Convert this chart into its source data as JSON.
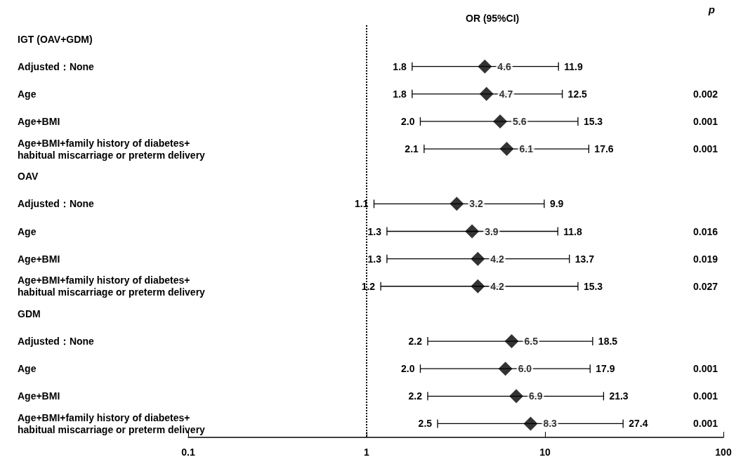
{
  "chart_data": {
    "type": "scatter",
    "orientation": "horizontal",
    "title": "OR (95%CI)",
    "y2label": "p",
    "categories": [
      "IGT (OAV+GDM)",
      "Adjusted：None",
      "Age",
      "Age+BMI",
      "Age+BMI+family history of diabetes+\nhabitual miscarriage or preterm delivery",
      "OAV",
      "Adjusted：None",
      "Age",
      "Age+BMI",
      "Age+BMI+family history of diabetes+\nhabitual miscarriage or preterm delivery",
      "GDM",
      "Adjusted：None",
      "Age",
      "Age+BMI",
      "Age+BMI+family history of diabetes+\nhabitual miscarriage or preterm delivery"
    ],
    "y2_categories": [
      null,
      null,
      "0.002",
      "0.001",
      "0.001",
      null,
      null,
      "0.016",
      "0.019",
      "0.027",
      null,
      null,
      "0.001",
      "0.001",
      "0.001"
    ],
    "values": [
      null,
      4.6,
      4.7,
      5.6,
      6.1,
      null,
      3.2,
      3.9,
      4.2,
      4.2,
      null,
      6.5,
      6.0,
      6.9,
      8.3
    ],
    "errors": [
      null,
      [
        1.8,
        11.9
      ],
      [
        1.8,
        12.5
      ],
      [
        2.0,
        15.3
      ],
      [
        2.1,
        17.6
      ],
      null,
      [
        1.1,
        9.9
      ],
      [
        1.3,
        11.8
      ],
      [
        1.3,
        13.7
      ],
      [
        1.2,
        15.3
      ],
      null,
      [
        2.2,
        18.5
      ],
      [
        2.0,
        17.9
      ],
      [
        2.2,
        21.3
      ],
      [
        2.5,
        27.4
      ]
    ],
    "value_labels": [
      null,
      "4.6",
      "4.7",
      "5.6",
      "6.1",
      null,
      "3.2",
      "3.9",
      "4.2",
      "4.2",
      null,
      "6.5",
      "6.0",
      "6.9",
      "8.3"
    ],
    "annotations": [
      "1.8",
      "11.9",
      "1.8",
      "12.5",
      "2.0",
      "15.3",
      "2.1",
      "17.6",
      "1.1",
      "9.9",
      "1.3",
      "11.8",
      "1.3",
      "13.7",
      "1.2",
      "15.3",
      "2.2",
      "18.5",
      "2.0",
      "17.9",
      "2.2",
      "21.3",
      "2.5",
      "27.4"
    ],
    "color": "#000000",
    "marker": "diamond",
    "log": "x",
    "xlim": [
      0.1,
      100
    ],
    "xticks": [
      0.1,
      1,
      10,
      100
    ],
    "ref_lines": [
      {
        "axis": "x",
        "value": 1,
        "line_style": "dotted"
      }
    ],
    "grid": false
  }
}
